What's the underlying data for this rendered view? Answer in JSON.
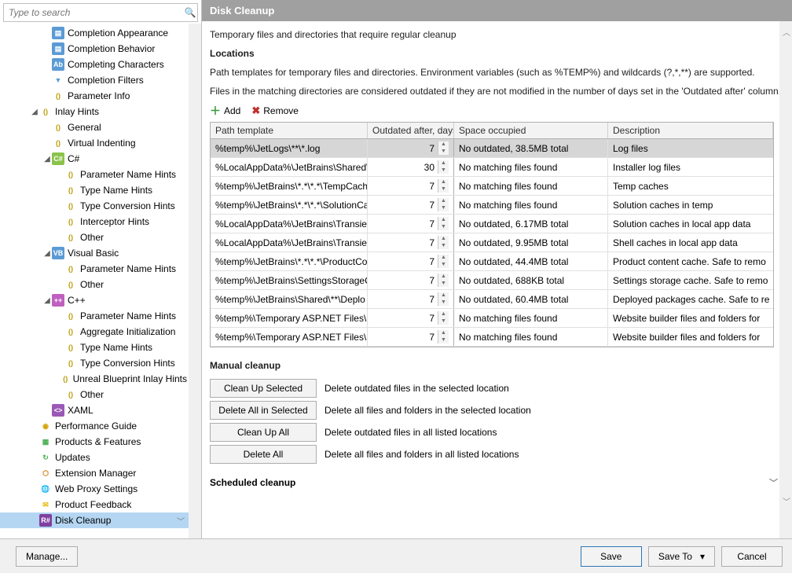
{
  "search": {
    "placeholder": "Type to search"
  },
  "header": {
    "title": "Disk Cleanup",
    "intro": "Temporary files and directories that require regular cleanup",
    "locations_h": "Locations",
    "locations_desc": "Path templates for temporary files and directories. Environment variables (such as %TEMP%) and wildcards (?,*,**) are supported.",
    "locations_desc2": "Files in the matching directories are considered outdated if they are not modified in the number of days set in the 'Outdated after' column."
  },
  "toolbar": {
    "add": "Add",
    "remove": "Remove"
  },
  "grid": {
    "columns": [
      "Path template",
      "Outdated after, days",
      "Space occupied",
      "Description"
    ],
    "rows": [
      {
        "path": "%temp%\\JetLogs\\**\\*.log",
        "days": 7,
        "space": "No outdated, 38.5MB total",
        "desc": "Log files",
        "selected": true
      },
      {
        "path": "%LocalAppData%\\JetBrains\\Shared\\",
        "days": 30,
        "space": "No matching files found",
        "desc": "Installer log files"
      },
      {
        "path": "%temp%\\JetBrains\\*.*\\*.*\\TempCach",
        "days": 7,
        "space": "No matching files found",
        "desc": "Temp caches"
      },
      {
        "path": "%temp%\\JetBrains\\*.*\\*.*\\SolutionCa",
        "days": 7,
        "space": "No matching files found",
        "desc": "Solution caches in temp"
      },
      {
        "path": "%LocalAppData%\\JetBrains\\Transien",
        "days": 7,
        "space": "No outdated, 6.17MB total",
        "desc": "Solution caches in local app data"
      },
      {
        "path": "%LocalAppData%\\JetBrains\\Transien",
        "days": 7,
        "space": "No outdated, 9.95MB total",
        "desc": "Shell caches in local app data"
      },
      {
        "path": "%temp%\\JetBrains\\*.*\\*.*\\ProductCo",
        "days": 7,
        "space": "No outdated, 44.4MB total",
        "desc": "Product content cache. Safe to remo"
      },
      {
        "path": "%temp%\\JetBrains\\SettingsStorageC",
        "days": 7,
        "space": "No outdated, 688KB total",
        "desc": "Settings storage cache. Safe to remo"
      },
      {
        "path": "%temp%\\JetBrains\\Shared\\**\\Deplo",
        "days": 7,
        "space": "No outdated, 60.4MB total",
        "desc": "Deployed packages cache. Safe to re"
      },
      {
        "path": "%temp%\\Temporary ASP.NET Files\\[",
        "days": 7,
        "space": "No matching files found",
        "desc": "Website builder files and folders for"
      },
      {
        "path": "%temp%\\Temporary ASP.NET Files\\[",
        "days": 7,
        "space": "No matching files found",
        "desc": "Website builder files and folders for"
      }
    ]
  },
  "manual": {
    "heading": "Manual cleanup",
    "buttons": [
      {
        "label": "Clean Up Selected",
        "desc": "Delete outdated files in the selected location"
      },
      {
        "label": "Delete All in Selected",
        "desc": "Delete all files and folders in the selected location"
      },
      {
        "label": "Clean Up All",
        "desc": "Delete outdated files in all listed locations"
      },
      {
        "label": "Delete All",
        "desc": "Delete all files and folders in all listed locations"
      }
    ]
  },
  "scheduled_h": "Scheduled cleanup",
  "footer": {
    "manage": "Manage...",
    "save": "Save",
    "save_to": "Save To",
    "cancel": "Cancel"
  },
  "tree": [
    {
      "depth": 3,
      "icon": "app",
      "label": "Completion Appearance"
    },
    {
      "depth": 3,
      "icon": "app",
      "label": "Completion Behavior"
    },
    {
      "depth": 3,
      "icon": "chars",
      "label": "Completing Characters"
    },
    {
      "depth": 3,
      "icon": "filter",
      "label": "Completion Filters"
    },
    {
      "depth": 3,
      "icon": "param",
      "label": "Parameter Info"
    },
    {
      "depth": 2,
      "icon": "param",
      "label": "Inlay Hints",
      "expander": "open"
    },
    {
      "depth": 3,
      "icon": "param",
      "label": "General"
    },
    {
      "depth": 3,
      "icon": "param",
      "label": "Virtual Indenting"
    },
    {
      "depth": 3,
      "icon": "cs",
      "label": "C#",
      "expander": "open"
    },
    {
      "depth": 4,
      "icon": "param",
      "label": "Parameter Name Hints"
    },
    {
      "depth": 4,
      "icon": "param",
      "label": "Type Name Hints"
    },
    {
      "depth": 4,
      "icon": "param",
      "label": "Type Conversion Hints"
    },
    {
      "depth": 4,
      "icon": "param",
      "label": "Interceptor Hints"
    },
    {
      "depth": 4,
      "icon": "param",
      "label": "Other"
    },
    {
      "depth": 3,
      "icon": "vb",
      "label": "Visual Basic",
      "expander": "open"
    },
    {
      "depth": 4,
      "icon": "param",
      "label": "Parameter Name Hints"
    },
    {
      "depth": 4,
      "icon": "param",
      "label": "Other"
    },
    {
      "depth": 3,
      "icon": "cpp",
      "label": "C++",
      "expander": "open"
    },
    {
      "depth": 4,
      "icon": "param",
      "label": "Parameter Name Hints"
    },
    {
      "depth": 4,
      "icon": "param",
      "label": "Aggregate Initialization"
    },
    {
      "depth": 4,
      "icon": "param",
      "label": "Type Name Hints"
    },
    {
      "depth": 4,
      "icon": "param",
      "label": "Type Conversion Hints"
    },
    {
      "depth": 4,
      "icon": "param",
      "label": "Unreal Blueprint Inlay Hints"
    },
    {
      "depth": 4,
      "icon": "param",
      "label": "Other"
    },
    {
      "depth": 3,
      "icon": "xaml",
      "label": "XAML"
    },
    {
      "depth": 2,
      "icon": "perf",
      "label": "Performance Guide"
    },
    {
      "depth": 2,
      "icon": "prod",
      "label": "Products & Features"
    },
    {
      "depth": 2,
      "icon": "upd",
      "label": "Updates"
    },
    {
      "depth": 2,
      "icon": "ext",
      "label": "Extension Manager"
    },
    {
      "depth": 2,
      "icon": "proxy",
      "label": "Web Proxy Settings"
    },
    {
      "depth": 2,
      "icon": "mail",
      "label": "Product Feedback"
    },
    {
      "depth": 2,
      "icon": "disk",
      "label": "Disk Cleanup",
      "selected": true
    }
  ],
  "icons": {
    "app": {
      "bg": "#5b9bd5",
      "fg": "#fff",
      "txt": "▤"
    },
    "chars": {
      "bg": "#5b9bd5",
      "fg": "#fff",
      "txt": "Ab"
    },
    "filter": {
      "bg": "#fff",
      "fg": "#5b9bd5",
      "txt": "▼"
    },
    "param": {
      "bg": "#fff",
      "fg": "#b89a00",
      "txt": "()"
    },
    "cs": {
      "bg": "#8bc34a",
      "fg": "#fff",
      "txt": "C#"
    },
    "vb": {
      "bg": "#5b9bd5",
      "fg": "#fff",
      "txt": "VB"
    },
    "cpp": {
      "bg": "#c060c0",
      "fg": "#fff",
      "txt": "++"
    },
    "xaml": {
      "bg": "#9b59b6",
      "fg": "#fff",
      "txt": "<>"
    },
    "perf": {
      "bg": "#fff",
      "fg": "#d4a000",
      "txt": "◉"
    },
    "prod": {
      "bg": "#fff",
      "fg": "#4caf50",
      "txt": "▦"
    },
    "upd": {
      "bg": "#fff",
      "fg": "#4caf50",
      "txt": "↻"
    },
    "ext": {
      "bg": "#fff",
      "fg": "#d07000",
      "txt": "⬡"
    },
    "proxy": {
      "bg": "#fff",
      "fg": "#5b9bd5",
      "txt": "🌐"
    },
    "mail": {
      "bg": "#fff",
      "fg": "#e6b800",
      "txt": "✉"
    },
    "disk": {
      "bg": "#8040a0",
      "fg": "#fff",
      "txt": "R#"
    }
  },
  "colors": {
    "titlebar": "#a0a0a0",
    "selected_tree": "#b4d6f2",
    "grid_border": "#b0b0b0",
    "primary_btn_border": "#2e75b6"
  }
}
